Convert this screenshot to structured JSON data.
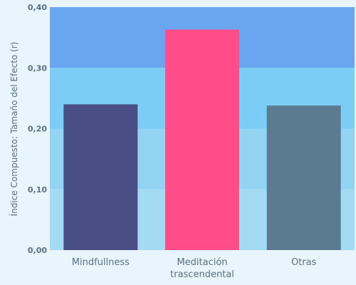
{
  "chart_data": {
    "type": "bar",
    "title": "",
    "xlabel": "",
    "ylabel": "Índice Compuesto: Tamaño del Efecto (r)",
    "ylim": [
      0,
      0.4
    ],
    "grid": false,
    "legend": "none",
    "y_ticks": [
      {
        "value": 0.0,
        "label": "0,00"
      },
      {
        "value": 0.1,
        "label": "0,10"
      },
      {
        "value": 0.2,
        "label": "0,20"
      },
      {
        "value": 0.3,
        "label": "0,30"
      },
      {
        "value": 0.4,
        "label": "0,40"
      }
    ],
    "bands": [
      {
        "from": 0.0,
        "to": 0.1,
        "color": "#a3dbf2"
      },
      {
        "from": 0.1,
        "to": 0.2,
        "color": "#93d4f2"
      },
      {
        "from": 0.2,
        "to": 0.3,
        "color": "#7ccdf5"
      },
      {
        "from": 0.3,
        "to": 0.4,
        "color": "#6aa6f0"
      }
    ],
    "categories": [
      {
        "lines": [
          "Mindfullness"
        ],
        "value": 0.24,
        "color": "#494f85"
      },
      {
        "lines": [
          "Meditación",
          "trascendental"
        ],
        "value": 0.363,
        "color": "#ff4d8a"
      },
      {
        "lines": [
          "Otras"
        ],
        "value": 0.238,
        "color": "#5a7b91"
      }
    ]
  },
  "colors": {
    "background": "#e8f5fc",
    "text": "#5c6f80"
  }
}
